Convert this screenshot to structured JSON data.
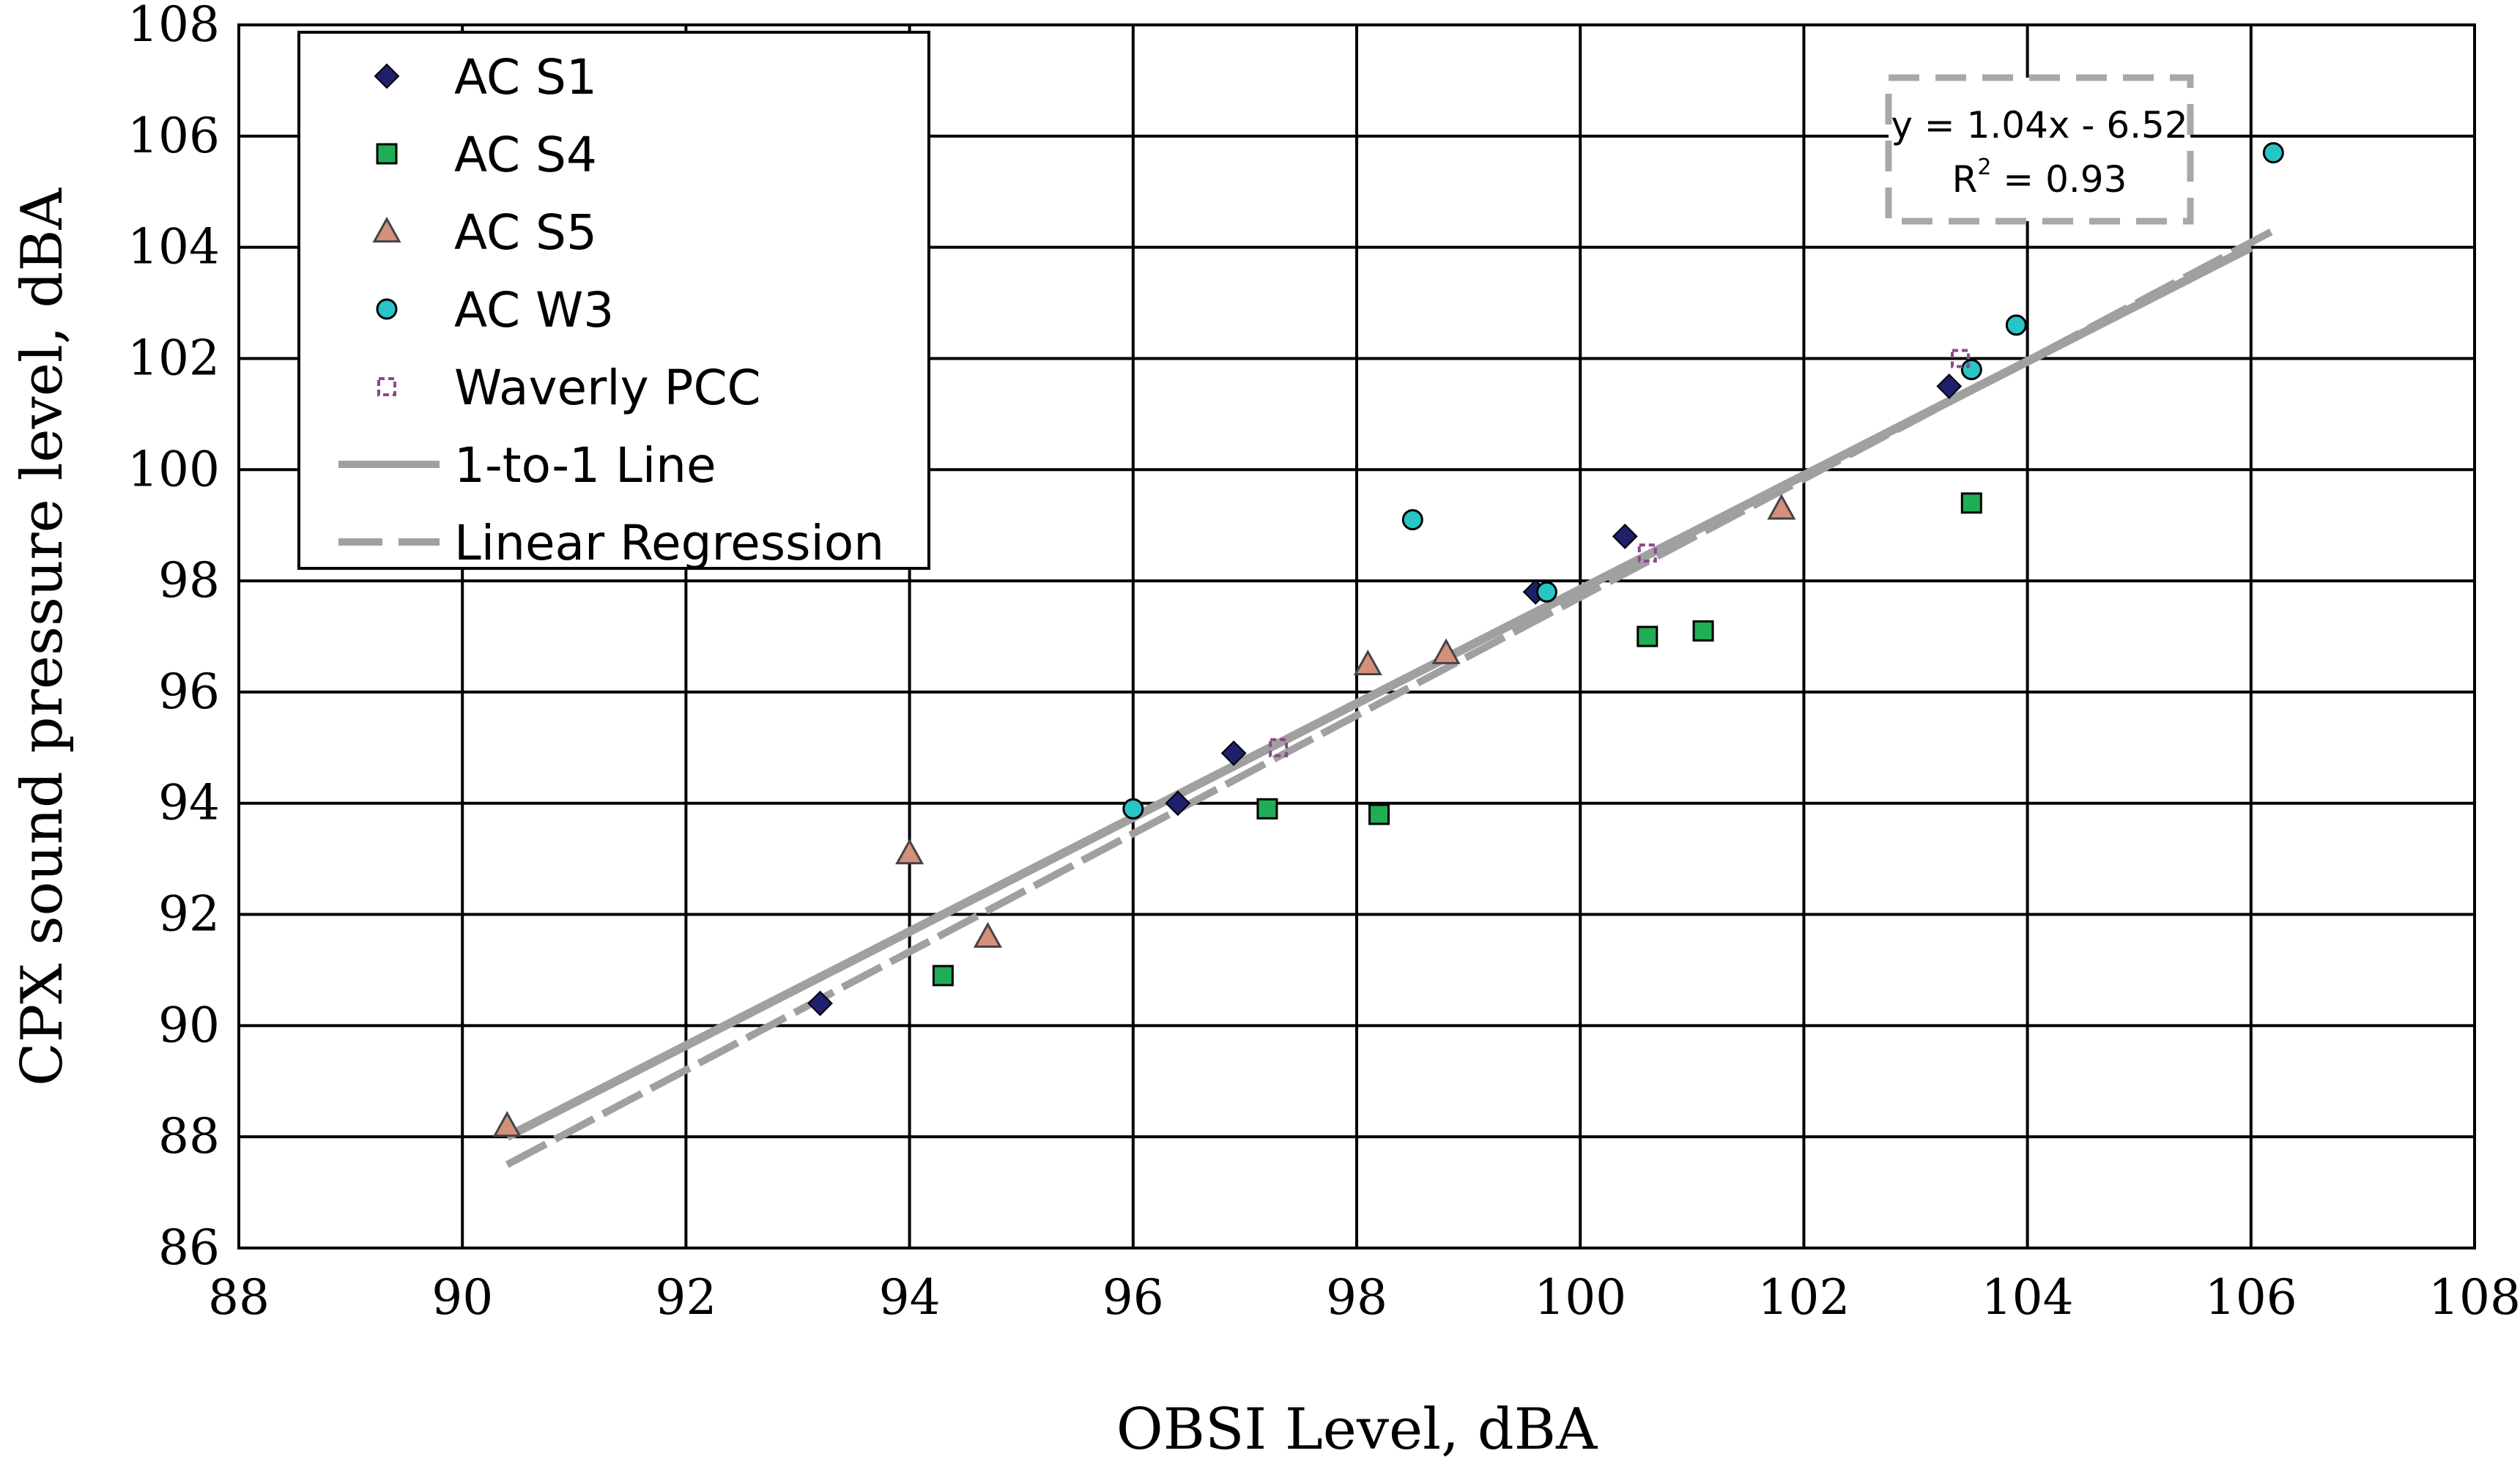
{
  "chart_data": {
    "type": "scatter",
    "title": "",
    "xlabel": "OBSI Level, dBA",
    "ylabel": "CPX sound pressure level, dBA",
    "xlim": [
      88,
      108
    ],
    "ylim": [
      86,
      108
    ],
    "x_ticks": [
      88,
      90,
      92,
      94,
      96,
      98,
      100,
      102,
      104,
      106,
      108
    ],
    "y_ticks": [
      86,
      88,
      90,
      92,
      94,
      96,
      98,
      100,
      102,
      104,
      106,
      108
    ],
    "grid": true,
    "legend_position": "top-left",
    "series": [
      {
        "name": "AC S1",
        "marker": "diamond",
        "color": "#1f1f6e",
        "points": [
          [
            93.2,
            90.4
          ],
          [
            96.4,
            94.0
          ],
          [
            96.9,
            94.9
          ],
          [
            99.6,
            97.8
          ],
          [
            100.4,
            98.8
          ],
          [
            103.3,
            101.5
          ]
        ]
      },
      {
        "name": "AC S4",
        "marker": "square",
        "color": "#1fae55",
        "points": [
          [
            94.3,
            90.9
          ],
          [
            97.2,
            93.9
          ],
          [
            98.2,
            93.8
          ],
          [
            100.6,
            97.0
          ],
          [
            101.1,
            97.1
          ],
          [
            103.5,
            99.4
          ]
        ]
      },
      {
        "name": "AC S5",
        "marker": "triangle",
        "color": "#d4907a",
        "points": [
          [
            90.4,
            88.2
          ],
          [
            94.0,
            93.1
          ],
          [
            94.7,
            91.6
          ],
          [
            98.1,
            96.5
          ],
          [
            98.8,
            96.7
          ],
          [
            101.8,
            99.3
          ]
        ]
      },
      {
        "name": "AC W3",
        "marker": "circle",
        "color": "#27c5c5",
        "points": [
          [
            96.0,
            93.9
          ],
          [
            98.5,
            99.1
          ],
          [
            99.7,
            97.8
          ],
          [
            103.5,
            101.8
          ],
          [
            103.9,
            102.6
          ],
          [
            106.2,
            105.7
          ]
        ]
      },
      {
        "name": "Waverly PCC",
        "marker": "open-square",
        "color": "#8a4a8a",
        "points": [
          [
            97.3,
            95.0
          ],
          [
            100.6,
            98.5
          ],
          [
            103.4,
            102.0
          ]
        ]
      }
    ],
    "lines": [
      {
        "name": "1-to-1 Line",
        "style": "solid",
        "color": "#a0a0a0",
        "from": [
          90.4,
          88.0
        ],
        "to": [
          106.0,
          104.0
        ]
      },
      {
        "name": "Linear Regression",
        "style": "dashed",
        "color": "#a0a0a0",
        "from": [
          90.4,
          87.5
        ],
        "to": [
          106.2,
          104.3
        ]
      }
    ],
    "annotation": {
      "equation": "y = 1.04x - 6.52",
      "r2_prefix": "R",
      "r2_exp": "2",
      "r2_suffix": " = 0.93"
    }
  }
}
